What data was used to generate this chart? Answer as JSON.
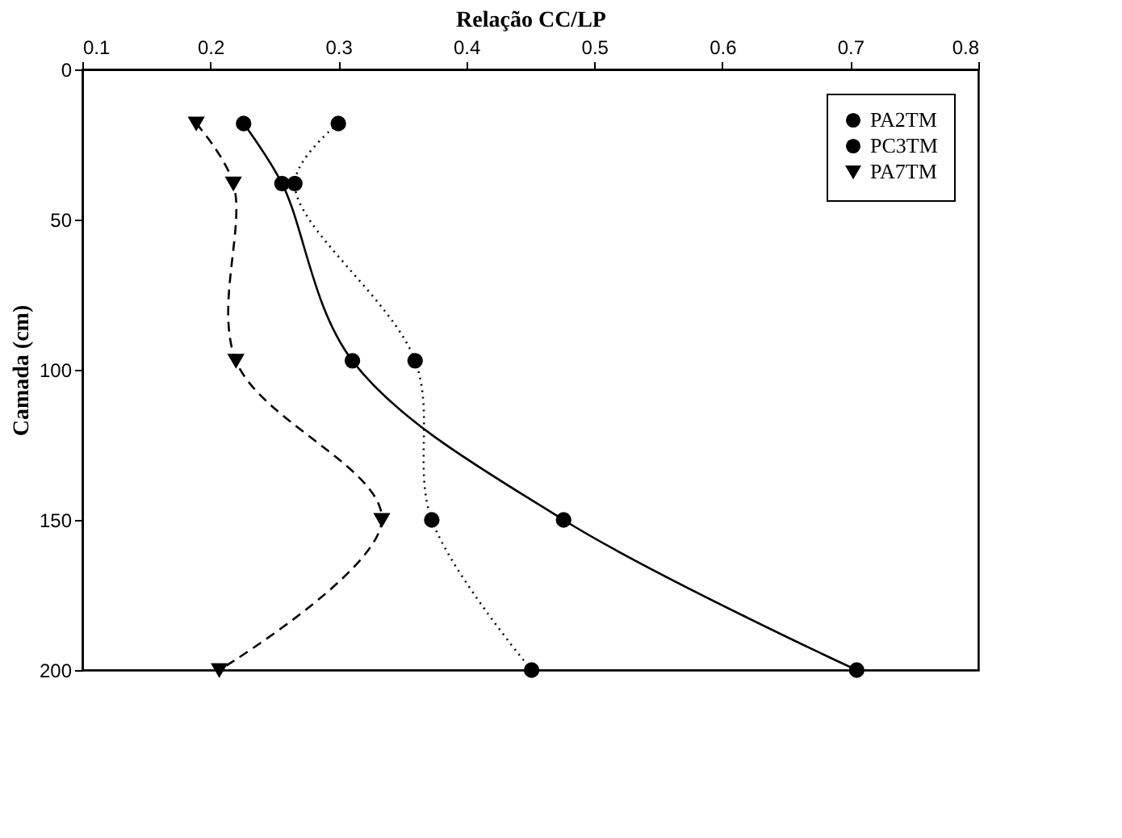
{
  "chart_data": {
    "type": "line",
    "xlabel": "Relação CC/LP",
    "ylabel": "Camada (cm)",
    "xlim": [
      0.1,
      0.8
    ],
    "xticks": [
      0.1,
      0.2,
      0.3,
      0.4,
      0.5,
      0.6,
      0.7,
      0.8
    ],
    "ylim": [
      200,
      0
    ],
    "yticks": [
      0,
      50,
      100,
      150,
      200
    ],
    "grid": false,
    "legend": "top right",
    "series": [
      {
        "name": "PA2TM",
        "color": "#000000",
        "marker": "circle",
        "line_style": "solid",
        "x": [
          0.226,
          0.256,
          0.311,
          0.476,
          0.705
        ],
        "values": [
          18,
          38,
          97,
          150,
          200
        ]
      },
      {
        "name": "PC3TM",
        "color": "#000000",
        "marker": "circle",
        "line_style": "dotted",
        "x": [
          0.3,
          0.266,
          0.36,
          0.373,
          0.451
        ],
        "values": [
          18,
          38,
          97,
          150,
          200
        ]
      },
      {
        "name": "PA7TM",
        "color": "#000000",
        "marker": "triangle",
        "line_style": "dashed",
        "x": [
          0.189,
          0.218,
          0.22,
          0.334,
          0.207
        ],
        "values": [
          18,
          38,
          97,
          150,
          200
        ]
      }
    ]
  }
}
